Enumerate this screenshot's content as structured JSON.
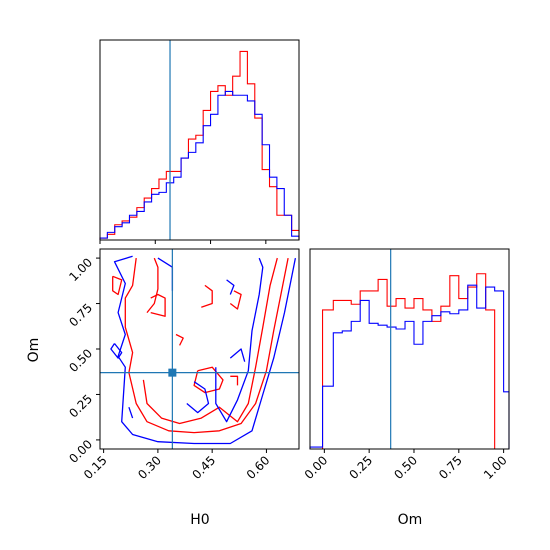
{
  "colors": {
    "series_a": "#ff0000",
    "series_b": "#0000ff",
    "truth": "#1f77b4",
    "axes": "#000000"
  },
  "chart_data": {
    "type": "corner",
    "parameters": [
      "H0",
      "Om"
    ],
    "truth": {
      "H0": 0.34,
      "Om": 0.37
    },
    "panels": [
      {
        "id": "H0-marginal",
        "type": "histogram",
        "xlim": [
          0.15,
          0.69
        ],
        "ylim": [
          0,
          1.05
        ],
        "grid": false,
        "x_ticks": [
          0.15,
          0.3,
          0.45,
          0.6
        ],
        "show_tick_labels": false,
        "series": [
          {
            "color": "red",
            "bin_edges": [
              0.15,
              0.17,
              0.19,
              0.21,
              0.23,
              0.25,
              0.27,
              0.29,
              0.31,
              0.33,
              0.35,
              0.37,
              0.39,
              0.41,
              0.43,
              0.45,
              0.47,
              0.49,
              0.51,
              0.53,
              0.55,
              0.57,
              0.59,
              0.61,
              0.63,
              0.65,
              0.67,
              0.69
            ],
            "heights": [
              0.01,
              0.03,
              0.08,
              0.1,
              0.12,
              0.17,
              0.22,
              0.27,
              0.32,
              0.36,
              0.36,
              0.43,
              0.53,
              0.55,
              0.68,
              0.78,
              0.81,
              0.76,
              0.86,
              0.99,
              0.82,
              0.64,
              0.37,
              0.28,
              0.13,
              0.13,
              0.05
            ]
          },
          {
            "color": "blue",
            "bin_edges": [
              0.15,
              0.17,
              0.19,
              0.21,
              0.23,
              0.25,
              0.27,
              0.29,
              0.31,
              0.33,
              0.35,
              0.37,
              0.39,
              0.41,
              0.43,
              0.45,
              0.47,
              0.49,
              0.51,
              0.53,
              0.55,
              0.57,
              0.59,
              0.61,
              0.63,
              0.65,
              0.67,
              0.69
            ],
            "heights": [
              0.01,
              0.04,
              0.07,
              0.09,
              0.13,
              0.15,
              0.2,
              0.24,
              0.25,
              0.3,
              0.33,
              0.43,
              0.46,
              0.51,
              0.6,
              0.66,
              0.76,
              0.78,
              0.76,
              0.76,
              0.73,
              0.66,
              0.5,
              0.33,
              0.27,
              0.13,
              0.02
            ]
          }
        ]
      },
      {
        "id": "H0-Om-joint",
        "type": "contour",
        "xlim": [
          0.14,
          0.69
        ],
        "ylim": [
          -0.05,
          1.05
        ],
        "grid": false,
        "x_ticks": [
          0.15,
          0.3,
          0.45,
          0.6
        ],
        "x_tick_labels": [
          "0.15",
          "0.30",
          "0.45",
          "0.60"
        ],
        "y_ticks": [
          0.0,
          0.25,
          0.5,
          0.75,
          1.0
        ],
        "y_tick_labels": [
          "0.00",
          "0.25",
          "0.50",
          "0.75",
          "1.00"
        ],
        "xlabel": "H0",
        "ylabel": "Om",
        "series": [
          {
            "color": "red",
            "contours": [
              [
                [
                  0.24,
                  1.0
                ],
                [
                  0.23,
                  0.85
                ],
                [
                  0.21,
                  0.78
                ],
                [
                  0.21,
                  0.62
                ],
                [
                  0.23,
                  0.48
                ],
                [
                  0.22,
                  0.37
                ],
                [
                  0.24,
                  0.2
                ],
                [
                  0.27,
                  0.1
                ],
                [
                  0.33,
                  0.05
                ],
                [
                  0.4,
                  0.04
                ],
                [
                  0.47,
                  0.05
                ],
                [
                  0.53,
                  0.09
                ],
                [
                  0.57,
                  0.2
                ],
                [
                  0.6,
                  0.38
                ],
                [
                  0.62,
                  0.6
                ],
                [
                  0.64,
                  0.8
                ],
                [
                  0.66,
                  1.0
                ]
              ],
              [
                [
                  0.26,
                  0.33
                ],
                [
                  0.27,
                  0.2
                ],
                [
                  0.31,
                  0.12
                ],
                [
                  0.36,
                  0.09
                ],
                [
                  0.42,
                  0.12
                ],
                [
                  0.47,
                  0.18
                ],
                [
                  0.52,
                  0.1
                ],
                [
                  0.55,
                  0.2
                ],
                [
                  0.57,
                  0.4
                ],
                [
                  0.59,
                  0.62
                ],
                [
                  0.61,
                  0.85
                ],
                [
                  0.63,
                  1.0
                ]
              ],
              [
                [
                  0.175,
                  0.9
                ],
                [
                  0.2,
                  0.88
                ],
                [
                  0.19,
                  0.8
                ],
                [
                  0.175,
                  0.82
                ],
                [
                  0.175,
                  0.9
                ]
              ],
              [
                [
                  0.27,
                  0.7
                ],
                [
                  0.29,
                  0.75
                ],
                [
                  0.3,
                  0.83
                ],
                [
                  0.3,
                  0.95
                ],
                [
                  0.29,
                  1.0
                ]
              ],
              [
                [
                  0.28,
                  0.78
                ],
                [
                  0.3,
                  0.8
                ],
                [
                  0.32,
                  0.78
                ],
                [
                  0.32,
                  0.68
                ],
                [
                  0.28,
                  0.7
                ]
              ],
              [
                [
                  0.43,
                  0.85
                ],
                [
                  0.45,
                  0.82
                ],
                [
                  0.45,
                  0.75
                ],
                [
                  0.42,
                  0.73
                ]
              ],
              [
                [
                  0.51,
                  0.82
                ],
                [
                  0.53,
                  0.8
                ],
                [
                  0.52,
                  0.72
                ],
                [
                  0.5,
                  0.75
                ]
              ],
              [
                [
                  0.41,
                  0.38
                ],
                [
                  0.45,
                  0.4
                ],
                [
                  0.48,
                  0.33
                ],
                [
                  0.47,
                  0.28
                ],
                [
                  0.43,
                  0.26
                ],
                [
                  0.4,
                  0.3
                ],
                [
                  0.41,
                  0.38
                ]
              ],
              [
                [
                  0.5,
                  0.35
                ],
                [
                  0.52,
                  0.35
                ],
                [
                  0.52,
                  0.3
                ]
              ],
              [
                [
                  0.35,
                  0.58
                ],
                [
                  0.37,
                  0.56
                ],
                [
                  0.36,
                  0.52
                ]
              ]
            ]
          },
          {
            "color": "blue",
            "contours": [
              [
                [
                  0.23,
                  1.01
                ],
                [
                  0.18,
                  0.98
                ],
                [
                  0.21,
                  0.86
                ],
                [
                  0.19,
                  0.7
                ],
                [
                  0.21,
                  0.58
                ],
                [
                  0.19,
                  0.46
                ],
                [
                  0.21,
                  0.4
                ],
                [
                  0.2,
                  0.1
                ],
                [
                  0.23,
                  0.03
                ],
                [
                  0.3,
                  -0.01
                ],
                [
                  0.4,
                  -0.02
                ],
                [
                  0.5,
                  -0.02
                ],
                [
                  0.56,
                  0.05
                ],
                [
                  0.59,
                  0.25
                ],
                [
                  0.62,
                  0.45
                ],
                [
                  0.65,
                  0.7
                ],
                [
                  0.67,
                  0.9
                ],
                [
                  0.68,
                  1.0
                ]
              ],
              [
                [
                  0.46,
                  0.4
                ],
                [
                  0.46,
                  0.2
                ],
                [
                  0.49,
                  0.1
                ],
                [
                  0.52,
                  0.22
                ],
                [
                  0.55,
                  0.38
                ],
                [
                  0.56,
                  0.6
                ],
                [
                  0.58,
                  0.8
                ],
                [
                  0.59,
                  0.95
                ],
                [
                  0.58,
                  1.0
                ]
              ],
              [
                [
                  0.4,
                  0.32
                ],
                [
                  0.43,
                  0.28
                ],
                [
                  0.44,
                  0.2
                ],
                [
                  0.41,
                  0.15
                ],
                [
                  0.38,
                  0.2
                ]
              ],
              [
                [
                  0.34,
                  0.82
                ],
                [
                  0.34,
                  0.95
                ],
                [
                  0.3,
                  1.0
                ]
              ],
              [
                [
                  0.5,
                  0.45
                ],
                [
                  0.53,
                  0.5
                ],
                [
                  0.54,
                  0.43
                ]
              ],
              [
                [
                  0.18,
                  0.53
                ],
                [
                  0.2,
                  0.48
                ],
                [
                  0.19,
                  0.45
                ],
                [
                  0.17,
                  0.5
                ],
                [
                  0.18,
                  0.53
                ]
              ],
              [
                [
                  0.22,
                  0.18
                ],
                [
                  0.23,
                  0.12
                ]
              ],
              [
                [
                  0.49,
                  0.88
                ],
                [
                  0.51,
                  0.85
                ],
                [
                  0.5,
                  0.8
                ]
              ]
            ]
          }
        ],
        "truth_marker": {
          "x": 0.34,
          "y": 0.37,
          "shape": "square"
        }
      },
      {
        "id": "Om-marginal",
        "type": "histogram",
        "xlim": [
          -0.08,
          1.03
        ],
        "ylim": [
          0,
          1.05
        ],
        "grid": false,
        "x_ticks": [
          0.0,
          0.25,
          0.5,
          0.75,
          1.0
        ],
        "x_tick_labels": [
          "0.00",
          "0.25",
          "0.50",
          "0.75",
          "1.00"
        ],
        "xlabel": "Om",
        "series": [
          {
            "color": "red",
            "bin_edges": [
              -0.08,
              -0.01,
              0.05,
              0.1,
              0.15,
              0.2,
              0.25,
              0.3,
              0.35,
              0.4,
              0.45,
              0.5,
              0.55,
              0.6,
              0.65,
              0.7,
              0.75,
              0.8,
              0.85,
              0.9,
              0.95,
              1.0
            ],
            "heights": [
              0.0,
              0.73,
              0.78,
              0.78,
              0.76,
              0.83,
              0.83,
              0.89,
              0.75,
              0.79,
              0.74,
              0.79,
              0.73,
              0.67,
              0.75,
              0.91,
              0.79,
              0.85,
              0.92,
              0.73,
              0.0
            ]
          },
          {
            "color": "blue",
            "bin_edges": [
              -0.08,
              -0.01,
              0.05,
              0.1,
              0.15,
              0.2,
              0.25,
              0.3,
              0.35,
              0.4,
              0.45,
              0.5,
              0.55,
              0.6,
              0.65,
              0.7,
              0.75,
              0.8,
              0.85,
              0.9,
              0.95,
              1.0,
              1.03
            ],
            "heights": [
              0.01,
              0.33,
              0.61,
              0.62,
              0.67,
              0.78,
              0.66,
              0.65,
              0.64,
              0.63,
              0.67,
              0.55,
              0.67,
              0.7,
              0.72,
              0.71,
              0.73,
              0.86,
              0.74,
              0.85,
              0.83,
              0.3
            ]
          }
        ]
      }
    ]
  }
}
